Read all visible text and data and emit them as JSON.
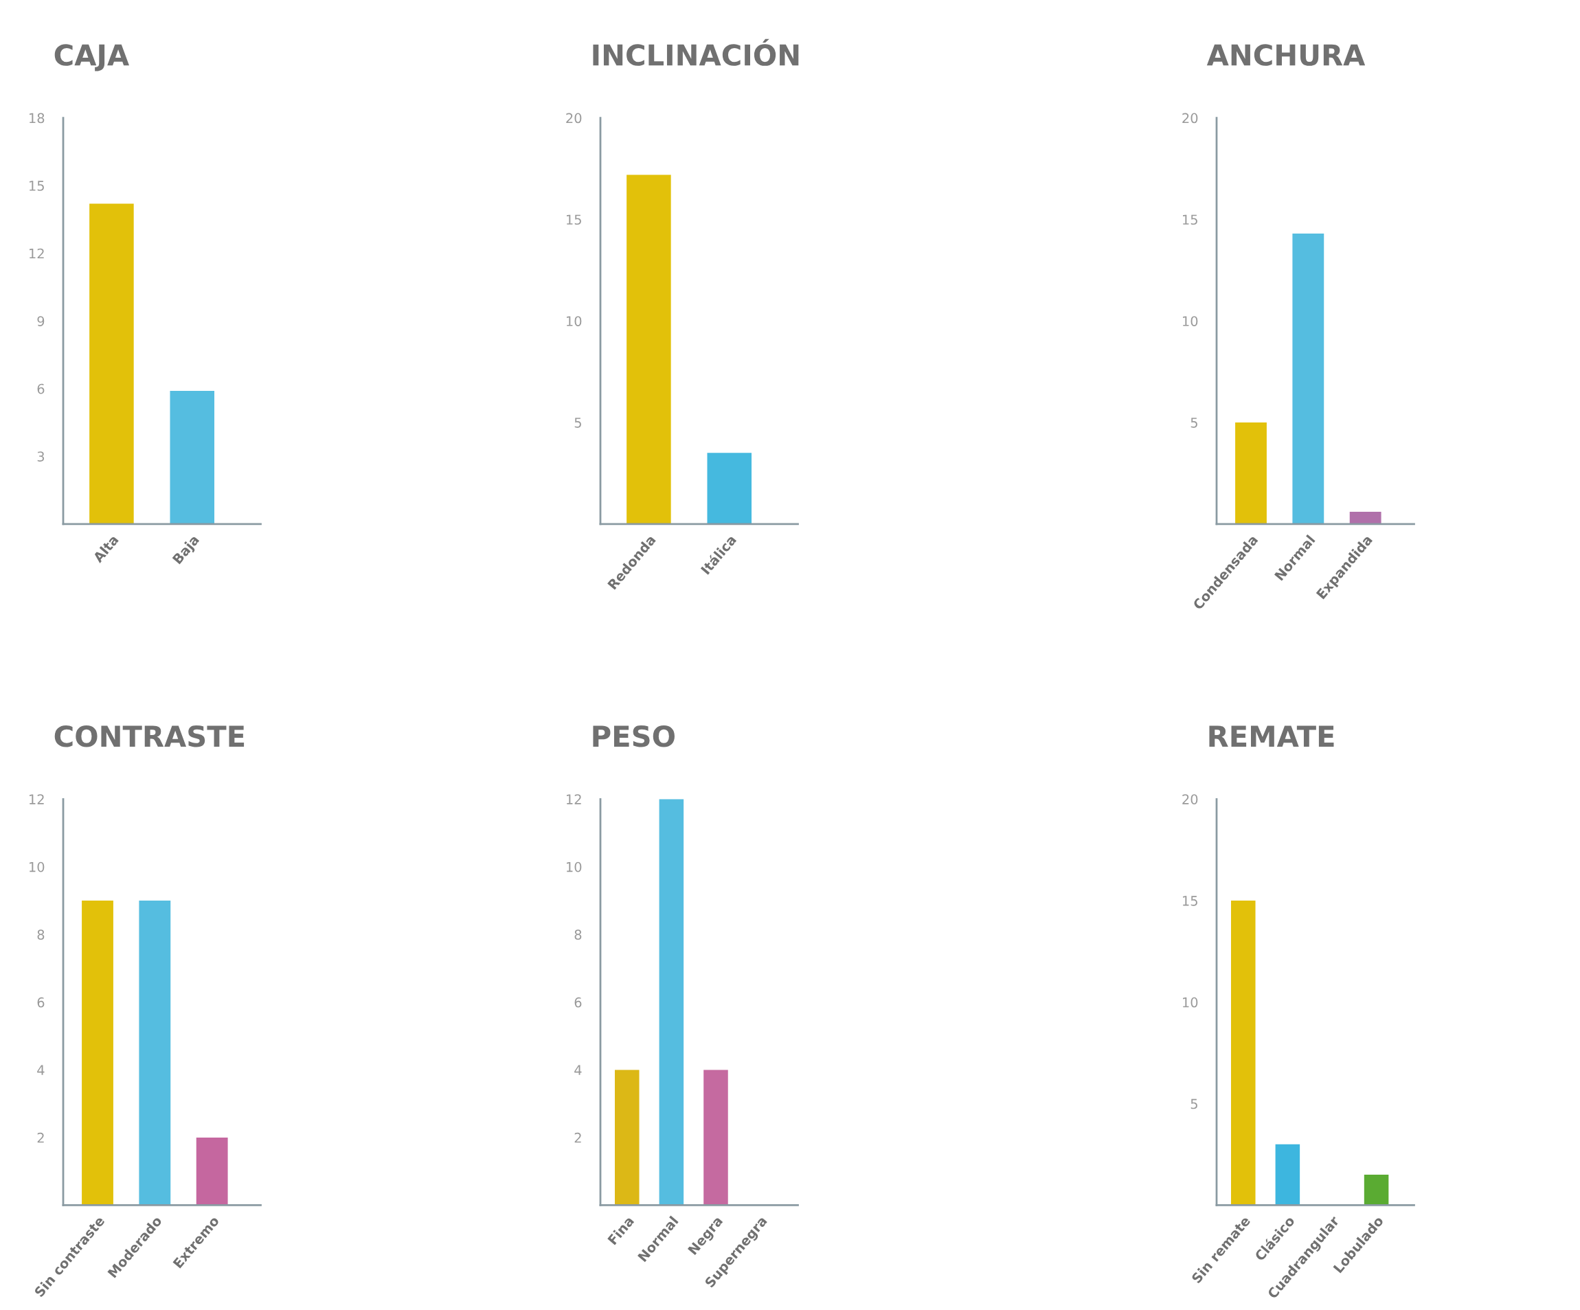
{
  "chart_data": [
    {
      "type": "bar",
      "title": "CAJA",
      "categories": [
        "Alta",
        "Baja"
      ],
      "values": [
        14.2,
        5.9
      ],
      "colors": [
        "#e2c10a",
        "#55bde0"
      ],
      "ylim": [
        0,
        18
      ],
      "yticks": [
        3,
        6,
        9,
        12,
        15,
        18
      ],
      "grid": false,
      "legend": false
    },
    {
      "type": "bar",
      "title": "INCLINACIÓN",
      "categories": [
        "Redonda",
        "Itálica"
      ],
      "values": [
        17.2,
        3.5
      ],
      "colors": [
        "#e2c10a",
        "#45b9df"
      ],
      "ylim": [
        0,
        20
      ],
      "yticks": [
        5,
        10,
        15,
        20
      ],
      "grid": false,
      "legend": false
    },
    {
      "type": "bar",
      "title": "ANCHURA",
      "categories": [
        "Condensada",
        "Normal",
        "Expandida"
      ],
      "values": [
        5,
        14.3,
        0.6
      ],
      "colors": [
        "#e2c10a",
        "#55bde0",
        "#b070aa"
      ],
      "ylim": [
        0,
        20
      ],
      "yticks": [
        5,
        10,
        15,
        20
      ],
      "grid": false,
      "legend": false
    },
    {
      "type": "bar",
      "title": "CONTRASTE",
      "categories": [
        "Sin contraste",
        "Moderado",
        "Extremo"
      ],
      "values": [
        9,
        9,
        2
      ],
      "colors": [
        "#e2c10a",
        "#55bde0",
        "#c5679f"
      ],
      "ylim": [
        0,
        12
      ],
      "yticks": [
        2,
        4,
        6,
        8,
        10,
        12
      ],
      "grid": false,
      "legend": false
    },
    {
      "type": "bar",
      "title": "PESO",
      "categories": [
        "Fina",
        "Normal",
        "Negra",
        "Supernegra"
      ],
      "values": [
        4,
        12,
        4,
        0
      ],
      "colors": [
        "#dcb816",
        "#55bde0",
        "#c56aa0",
        "#c56aa0"
      ],
      "ylim": [
        0,
        12
      ],
      "yticks": [
        2,
        4,
        6,
        8,
        10,
        12
      ],
      "grid": false,
      "legend": false
    },
    {
      "type": "bar",
      "title": "REMATE",
      "categories": [
        "Sin remate",
        "Clásico",
        "Cuadrangular",
        "Lobulado"
      ],
      "values": [
        15,
        3,
        0,
        1.5
      ],
      "colors": [
        "#e2c10a",
        "#3db6df",
        "#9a9a9a",
        "#5aab32"
      ],
      "ylim": [
        0,
        20
      ],
      "yticks": [
        5,
        10,
        15,
        20
      ],
      "grid": false,
      "legend": false
    }
  ]
}
